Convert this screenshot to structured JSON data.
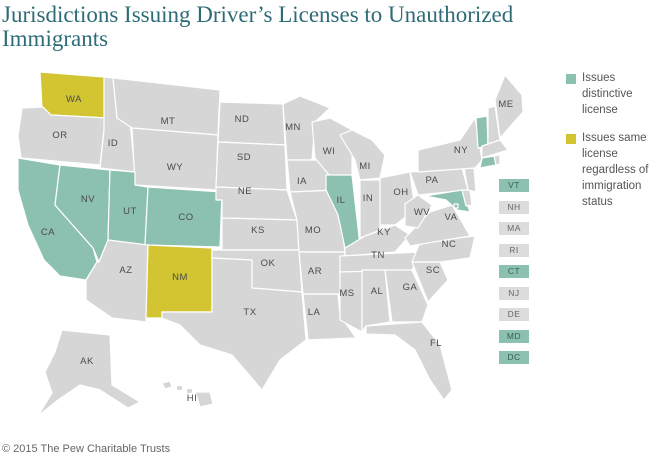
{
  "title": "Jurisdictions Issuing Driver’s Licenses to Unauthorized Immigrants",
  "legend": [
    {
      "label": "Issues distinctive license",
      "category": "distinct"
    },
    {
      "label": "Issues same license regardless of immigration status",
      "category": "same"
    }
  ],
  "colors": {
    "none": "#d6d6d6",
    "distinct": "#8cc0b1",
    "same": "#d2c531",
    "title": "#2d6b76"
  },
  "states": {
    "WA": "same",
    "OR": "none",
    "CA": "distinct",
    "NV": "distinct",
    "ID": "none",
    "MT": "none",
    "WY": "none",
    "UT": "distinct",
    "CO": "distinct",
    "AZ": "none",
    "NM": "same",
    "ND": "none",
    "SD": "none",
    "NE": "none",
    "KS": "none",
    "OK": "none",
    "TX": "none",
    "MN": "none",
    "IA": "none",
    "MO": "none",
    "AR": "none",
    "LA": "none",
    "WI": "none",
    "IL": "distinct",
    "MS": "none",
    "MI": "none",
    "IN": "none",
    "OH": "none",
    "KY": "none",
    "TN": "none",
    "AL": "none",
    "GA": "none",
    "FL": "none",
    "SC": "none",
    "NC": "none",
    "VA": "none",
    "WV": "none",
    "PA": "none",
    "NY": "none",
    "VT": "distinct",
    "NH": "none",
    "ME": "none",
    "MA": "none",
    "CT": "distinct",
    "RI": "none",
    "NJ": "none",
    "DE": "none",
    "MD": "distinct",
    "DC": "distinct",
    "AK": "none",
    "HI": "none"
  },
  "small_states": [
    {
      "code": "VT",
      "category": "distinct"
    },
    {
      "code": "NH",
      "category": "none"
    },
    {
      "code": "MA",
      "category": "none"
    },
    {
      "code": "RI",
      "category": "none"
    },
    {
      "code": "CT",
      "category": "distinct"
    },
    {
      "code": "NJ",
      "category": "none"
    },
    {
      "code": "DE",
      "category": "none"
    },
    {
      "code": "MD",
      "category": "distinct"
    },
    {
      "code": "DC",
      "category": "distinct"
    }
  ],
  "footer": "© 2015 The Pew Charitable Trusts"
}
